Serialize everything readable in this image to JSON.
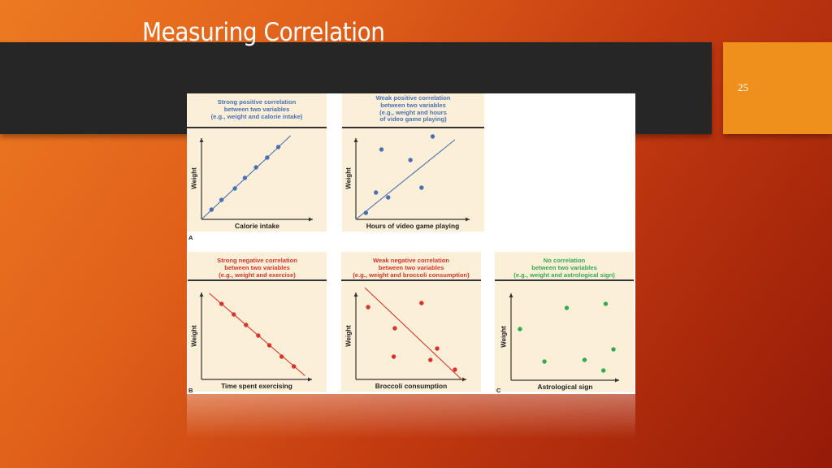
{
  "slide": {
    "title": "Measuring Correlation",
    "number": "25"
  },
  "colors": {
    "positive": "#4a6fb5",
    "negative": "#d9342b",
    "none": "#35a853",
    "panel_bg": "#fcefd8"
  },
  "chart_data": [
    {
      "type": "scatter",
      "panel_letter": "A",
      "title": "Strong positive correlation between two variables (e.g., weight and calorie intake)",
      "title_lines": [
        "Strong positive correlation",
        "between two variables",
        "(e.g., weight and calorie intake)"
      ],
      "xlabel": "Calorie intake",
      "ylabel": "Weight",
      "color": "#4a6fb5",
      "points": [
        [
          0.9,
          1.2
        ],
        [
          1.8,
          2.4
        ],
        [
          3.0,
          3.8
        ],
        [
          3.9,
          5.1
        ],
        [
          4.9,
          6.4
        ],
        [
          5.9,
          7.6
        ],
        [
          6.9,
          8.9
        ]
      ],
      "trend_line": [
        [
          0,
          0
        ],
        [
          8.0,
          10.3
        ]
      ]
    },
    {
      "type": "scatter",
      "panel_letter": "",
      "title": "Weak positive correlation between two variables (e.g., weight and hours of video game playing)",
      "title_lines": [
        "Weak positive correlation",
        "between two variables",
        "(e.g., weight and hours",
        "of video game playing)"
      ],
      "xlabel": "Hours of video game playing",
      "ylabel": "Weight",
      "color": "#4a6fb5",
      "points": [
        [
          0.9,
          0.8
        ],
        [
          1.8,
          3.3
        ],
        [
          2.3,
          8.6
        ],
        [
          2.9,
          2.7
        ],
        [
          4.9,
          7.3
        ],
        [
          5.9,
          3.9
        ],
        [
          6.9,
          10.2
        ]
      ],
      "trend_line": [
        [
          0,
          0
        ],
        [
          8.9,
          9.8
        ]
      ]
    },
    {
      "type": "scatter",
      "panel_letter": "B",
      "title": "Strong negative correlation between two variables (e.g., weight and exercise)",
      "title_lines": [
        "Strong negative correlation",
        "between two variables",
        "(e.g., weight and exercise)"
      ],
      "xlabel": "Time spent exercising",
      "ylabel": "Weight",
      "color": "#d9342b",
      "points": [
        [
          1.8,
          9.3
        ],
        [
          2.9,
          8.0
        ],
        [
          4.0,
          6.7
        ],
        [
          5.1,
          5.4
        ],
        [
          6.1,
          4.2
        ],
        [
          7.2,
          2.8
        ],
        [
          8.3,
          1.6
        ]
      ],
      "trend_line": [
        [
          0.7,
          10.6
        ],
        [
          9.3,
          0.45
        ]
      ]
    },
    {
      "type": "scatter",
      "panel_letter": "",
      "title": "Weak negative correlation between two variables (e.g., weight and broccoli consumption)",
      "title_lines": [
        "Weak negative correlation",
        "between two variables",
        "(e.g., weight and broccoli consumption)"
      ],
      "xlabel": "Broccoli consumption",
      "ylabel": "Weight",
      "color": "#d9342b",
      "points": [
        [
          1.1,
          8.9
        ],
        [
          5.9,
          9.4
        ],
        [
          3.5,
          6.3
        ],
        [
          3.4,
          2.8
        ],
        [
          7.3,
          3.8
        ],
        [
          6.7,
          2.4
        ],
        [
          8.9,
          1.2
        ]
      ],
      "trend_line": [
        [
          0.8,
          11.3
        ],
        [
          9.5,
          0
        ]
      ]
    },
    {
      "type": "scatter",
      "panel_letter": "C",
      "title": "No correlation between two variables (e.g., weight and astrological sign)",
      "title_lines": [
        "No correlation",
        "between two variables",
        "(e.g., weight and astrological sign)"
      ],
      "xlabel": "Astrological sign",
      "ylabel": "Weight",
      "color": "#35a853",
      "points": [
        [
          0.8,
          6.3
        ],
        [
          3.0,
          2.3
        ],
        [
          5.0,
          8.9
        ],
        [
          6.6,
          2.5
        ],
        [
          8.5,
          9.4
        ],
        [
          9.2,
          3.8
        ],
        [
          8.3,
          1.2
        ]
      ],
      "trend_line": null
    }
  ]
}
